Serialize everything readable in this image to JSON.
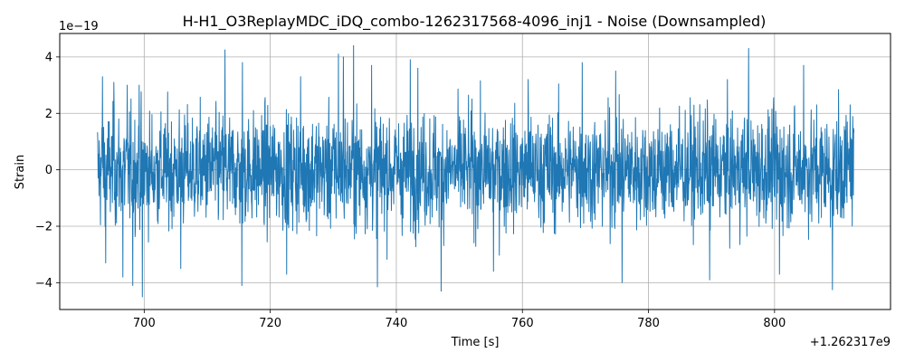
{
  "chart_data": {
    "type": "line",
    "title": "H-H1_O3ReplayMDC_iDQ_combo-1262317568-4096_inj1 - Noise (Downsampled)",
    "xlabel": "Time [s]",
    "ylabel": "Strain",
    "x_offset_label": "+1.262317e9",
    "y_scale_label": "1e−19",
    "xlim": [
      686.6,
      818.4
    ],
    "ylim": [
      -4.95,
      4.83
    ],
    "x_ticks": [
      700,
      720,
      740,
      760,
      780,
      800
    ],
    "x_tick_labels": [
      "700",
      "720",
      "740",
      "760",
      "780",
      "800"
    ],
    "y_ticks": [
      -4,
      -2,
      0,
      2,
      4
    ],
    "y_tick_labels": [
      "−4",
      "−2",
      "0",
      "2",
      "4"
    ],
    "grid": true,
    "series": [
      {
        "color": "#1f77b4",
        "x_start": 692.6,
        "x_end": 812.6,
        "noise_sigma": 1.0,
        "peaks": [
          {
            "x": 693.4,
            "y": 3.3
          },
          {
            "x": 693.9,
            "y": -3.3
          },
          {
            "x": 695.2,
            "y": 3.1
          },
          {
            "x": 696.6,
            "y": -3.8
          },
          {
            "x": 697.3,
            "y": 3.0
          },
          {
            "x": 698.2,
            "y": -4.1
          },
          {
            "x": 699.2,
            "y": 3.0
          },
          {
            "x": 699.7,
            "y": -4.5
          },
          {
            "x": 705.8,
            "y": -3.5
          },
          {
            "x": 712.8,
            "y": 4.25
          },
          {
            "x": 715.6,
            "y": 3.8
          },
          {
            "x": 715.5,
            "y": -4.1
          },
          {
            "x": 730.8,
            "y": 4.1
          },
          {
            "x": 731.6,
            "y": 4.0
          },
          {
            "x": 733.2,
            "y": 4.4
          },
          {
            "x": 736.1,
            "y": 3.7
          },
          {
            "x": 742.2,
            "y": 3.9
          },
          {
            "x": 743.4,
            "y": 3.6
          },
          {
            "x": 747.1,
            "y": -4.3
          },
          {
            "x": 769.5,
            "y": 3.8
          },
          {
            "x": 774.8,
            "y": 3.5
          },
          {
            "x": 775.8,
            "y": -4.0
          },
          {
            "x": 795.9,
            "y": 4.3
          },
          {
            "x": 804.6,
            "y": 3.7
          },
          {
            "x": 809.2,
            "y": -4.25
          },
          {
            "x": 812.0,
            "y": 2.3
          },
          {
            "x": 737.0,
            "y": -4.15
          },
          {
            "x": 722.6,
            "y": -3.7
          },
          {
            "x": 755.4,
            "y": -3.6
          },
          {
            "x": 789.7,
            "y": -3.9
          },
          {
            "x": 724.8,
            "y": 3.3
          },
          {
            "x": 760.9,
            "y": 3.2
          },
          {
            "x": 800.8,
            "y": -3.7
          }
        ]
      }
    ]
  }
}
